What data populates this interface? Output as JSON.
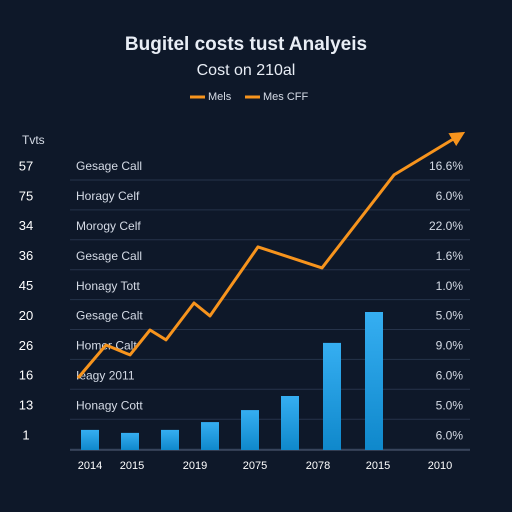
{
  "chart_data": {
    "type": "bar",
    "title": "Bugitel costs tust Analyeis",
    "subtitle": "Cost on 210al",
    "legend": [
      {
        "name": "Mels",
        "color": "#f7941d"
      },
      {
        "name": "Mes CFF",
        "color": "#f7941d"
      }
    ],
    "y_header": "Tvts",
    "rows": [
      {
        "left": "57",
        "name": "Gesage Call",
        "right": "16.6%"
      },
      {
        "left": "75",
        "name": "Horagy Celf",
        "right": "6.0%"
      },
      {
        "left": "34",
        "name": "Morogy Celf",
        "right": "22.0%"
      },
      {
        "left": "36",
        "name": "Gesage Call",
        "right": "1.6%"
      },
      {
        "left": "45",
        "name": "Honagy Tott",
        "right": "1.0%"
      },
      {
        "left": "20",
        "name": "Gesage Calt",
        "right": "5.0%"
      },
      {
        "left": "26",
        "name": "Homer Calt",
        "right": "9.0%"
      },
      {
        "left": "16",
        "name": "Ieagy 2011",
        "right": "6.0%"
      },
      {
        "left": "13",
        "name": "Honagy Cott",
        "right": "5.0%"
      },
      {
        "left": "1",
        "name": "",
        "right": "6.0%"
      }
    ],
    "x_labels": [
      "2014",
      "2015",
      "2019",
      "2075",
      "2078",
      "2015",
      "2010"
    ],
    "xlim": [
      0,
      10
    ],
    "ylim": [
      0,
      11
    ],
    "bars": {
      "color": "#12a0ef",
      "x": [
        0.5,
        1.5,
        2.5,
        3.5,
        4.5,
        5.5,
        6.55,
        7.6
      ],
      "values": [
        0.67,
        0.57,
        0.67,
        0.93,
        1.33,
        1.8,
        3.57,
        4.6
      ]
    },
    "line": {
      "color": "#f7941d",
      "x": [
        0.2,
        0.9,
        1.5,
        2.0,
        2.4,
        3.1,
        3.5,
        4.7,
        6.3,
        8.1,
        9.75
      ],
      "values": [
        2.4,
        3.5,
        3.17,
        4.0,
        3.67,
        4.9,
        4.47,
        6.77,
        6.07,
        9.17,
        10.5
      ]
    }
  }
}
